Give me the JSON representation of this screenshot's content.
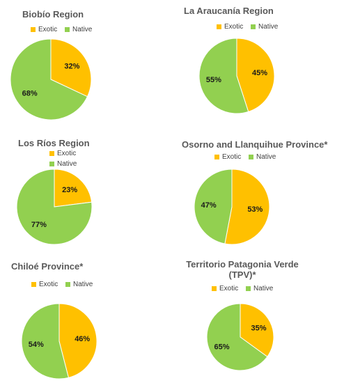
{
  "colors": {
    "exotic": "#FFC000",
    "native": "#92D050"
  },
  "legend": {
    "exotic": "Exotic",
    "native": "Native"
  },
  "chart_data": [
    {
      "type": "pie",
      "title": "Biobío Region",
      "categories": [
        "Exotic",
        "Native"
      ],
      "values": [
        32,
        68
      ],
      "labels": [
        "32%",
        "68%"
      ]
    },
    {
      "type": "pie",
      "title": "La Araucanía Region",
      "categories": [
        "Exotic",
        "Native"
      ],
      "values": [
        45,
        55
      ],
      "labels": [
        "45%",
        "55%"
      ]
    },
    {
      "type": "pie",
      "title": "Los Ríos Region",
      "categories": [
        "Exotic",
        "Native"
      ],
      "values": [
        23,
        77
      ],
      "labels": [
        "23%",
        "77%"
      ]
    },
    {
      "type": "pie",
      "title": "Osorno and Llanquihue Province*",
      "categories": [
        "Exotic",
        "Native"
      ],
      "values": [
        53,
        47
      ],
      "labels": [
        "53%",
        "47%"
      ]
    },
    {
      "type": "pie",
      "title": "Chiloé Province*",
      "categories": [
        "Exotic",
        "Native"
      ],
      "values": [
        46,
        54
      ],
      "labels": [
        "46%",
        "54%"
      ]
    },
    {
      "type": "pie",
      "title": "Territorio Patagonia Verde (TPV)*",
      "title_lines": [
        "Territorio Patagonia Verde",
        "(TPV)*"
      ],
      "categories": [
        "Exotic",
        "Native"
      ],
      "values": [
        35,
        65
      ],
      "labels": [
        "35%",
        "65%"
      ]
    }
  ]
}
